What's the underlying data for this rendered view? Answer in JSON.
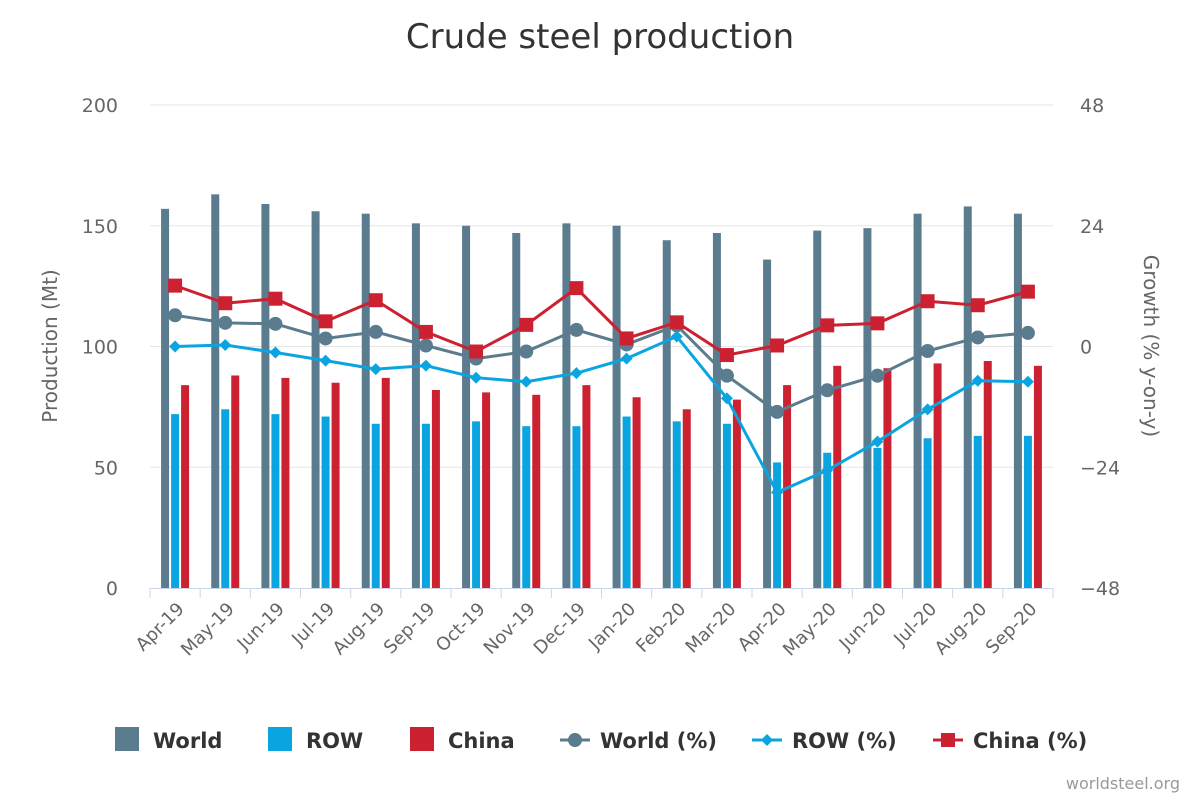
{
  "chart_data": {
    "type": "bar",
    "title": "Crude steel production",
    "ylabel": "Production (Mt)",
    "y2label": "Growth (% y-on-y)",
    "ylim": [
      0,
      200
    ],
    "y2lim": [
      -48,
      48
    ],
    "yticks": [
      "0",
      "50",
      "100",
      "150",
      "200"
    ],
    "y2ticks": [
      "−48",
      "−24",
      "0",
      "24",
      "48"
    ],
    "categories": [
      "Apr-19",
      "May-19",
      "Jun-19",
      "Jul-19",
      "Aug-19",
      "Sep-19",
      "Oct-19",
      "Nov-19",
      "Dec-19",
      "Jan-20",
      "Feb-20",
      "Mar-20",
      "Apr-20",
      "May-20",
      "Jun-20",
      "Jul-20",
      "Aug-20",
      "Sep-20"
    ],
    "series": [
      {
        "name": "World",
        "kind": "bar",
        "axis": "left",
        "color": "#5b7b8f",
        "values": [
          157,
          163,
          159,
          156,
          155,
          151,
          150,
          147,
          151,
          150,
          144,
          147,
          136,
          148,
          149,
          155,
          158,
          155
        ]
      },
      {
        "name": "ROW",
        "kind": "bar",
        "axis": "left",
        "color": "#0aa5e0",
        "values": [
          72,
          74,
          72,
          71,
          68,
          68,
          69,
          67,
          67,
          71,
          69,
          68,
          52,
          56,
          58,
          62,
          63,
          63
        ]
      },
      {
        "name": "China",
        "kind": "bar",
        "axis": "left",
        "color": "#cc2131",
        "values": [
          84,
          88,
          87,
          85,
          87,
          82,
          81,
          80,
          84,
          79,
          74,
          78,
          84,
          92,
          91,
          93,
          94,
          92
        ]
      },
      {
        "name": "World (%)",
        "kind": "line",
        "marker": "circle",
        "axis": "right",
        "color": "#5b7b8f",
        "values": [
          6.2,
          4.7,
          4.5,
          1.6,
          2.9,
          0.2,
          -2.4,
          -1.0,
          3.3,
          0.4,
          4.2,
          -5.8,
          -13.0,
          -8.7,
          -5.8,
          -0.9,
          1.8,
          2.7
        ]
      },
      {
        "name": "ROW (%)",
        "kind": "line",
        "marker": "diamond",
        "axis": "right",
        "color": "#0aa5e0",
        "values": [
          0,
          0.3,
          -1.2,
          -2.8,
          -4.5,
          -3.8,
          -6.2,
          -7.0,
          -5.3,
          -2.4,
          2.0,
          -10.3,
          -29.0,
          -24.6,
          -18.9,
          -12.5,
          -6.8,
          -7.0
        ]
      },
      {
        "name": "China (%)",
        "kind": "line",
        "marker": "square",
        "axis": "right",
        "color": "#cc2131",
        "values": [
          12.1,
          8.6,
          9.5,
          5.0,
          9.2,
          2.9,
          -1.0,
          4.3,
          11.6,
          1.6,
          4.8,
          -1.7,
          0.2,
          4.2,
          4.6,
          9.0,
          8.2,
          10.9
        ]
      }
    ],
    "legend": "bottom",
    "grid": true
  },
  "credit": "worldsteel.org"
}
